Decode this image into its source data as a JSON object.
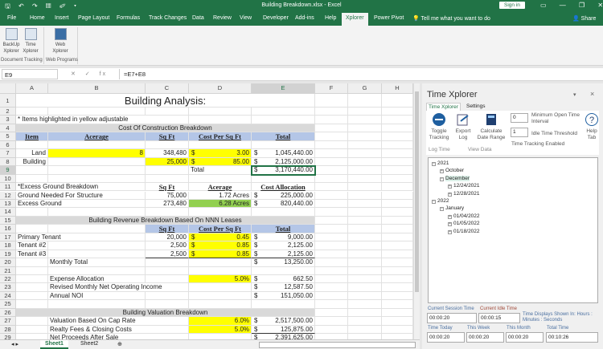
{
  "window": {
    "title": "Building Breakdown.xlsx - Excel",
    "sign_in": "Sign in",
    "qat": "🖫 ↶ ↷ ▦ ✐ ▾",
    "controls": "▭ — ❐ ✕"
  },
  "ribbon_tabs": [
    "File",
    "Home",
    "Insert",
    "Page Layout",
    "Formulas",
    "Track Changes",
    "Data",
    "Review",
    "View",
    "Developer",
    "Add-ins",
    "Help",
    "Xplorer",
    "Power Pivot"
  ],
  "active_tab": "Xplorer",
  "tell_me": "Tell me what you want to do",
  "share": "Share",
  "ribbon": {
    "buttons": [
      {
        "label": "BackUp Xplorer",
        "icon": "backup-icon"
      },
      {
        "label": "Time Xplorer",
        "icon": "hourglass-icon"
      },
      {
        "label": "Web Xplorer",
        "icon": "web-icon"
      }
    ],
    "groups": [
      "Document Tracking",
      "Web Programs"
    ]
  },
  "formula_bar": {
    "name_box": "E9",
    "formula": "=E7+E8",
    "icons": "✕ ✓ fx"
  },
  "sheet": {
    "columns": [
      "A",
      "B",
      "C",
      "D",
      "E",
      "F",
      "G",
      "H"
    ],
    "selected_column": "E",
    "selected_row": 9,
    "rows": [
      1,
      2,
      3,
      4,
      5,
      6,
      7,
      8,
      9,
      10,
      11,
      12,
      13,
      14,
      15,
      16,
      17,
      18,
      19,
      20,
      21,
      22,
      23,
      24,
      25,
      26,
      27,
      28,
      29
    ],
    "cells": [
      {
        "r": 1,
        "c": "A",
        "span": 5,
        "t": "Building Analysis:",
        "a": "center",
        "s": "title"
      },
      {
        "r": 3,
        "c": "A",
        "span": 3,
        "t": "* Items highlighted in yellow adjustable"
      },
      {
        "r": 4,
        "c": "A",
        "span": 5,
        "t": "Cost Of Construction Breakdown",
        "a": "center",
        "fill": "#d9d9d9"
      },
      {
        "r": 5,
        "c": "A",
        "t": "Item",
        "a": "center",
        "fill": "#b4c6e7",
        "s": "hdr"
      },
      {
        "r": 5,
        "c": "B",
        "t": "Acerage",
        "a": "center",
        "fill": "#b4c6e7",
        "s": "hdr"
      },
      {
        "r": 5,
        "c": "C",
        "t": "Sq Ft",
        "a": "center",
        "fill": "#b4c6e7",
        "s": "hdr"
      },
      {
        "r": 5,
        "c": "D",
        "t": "Cost Per Sq Ft",
        "a": "center",
        "fill": "#b4c6e7",
        "s": "hdr"
      },
      {
        "r": 5,
        "c": "E",
        "t": "Total",
        "a": "center",
        "fill": "#b4c6e7",
        "s": "hdr"
      },
      {
        "r": 7,
        "c": "A",
        "t": "Land",
        "a": "right"
      },
      {
        "r": 7,
        "c": "B",
        "t": "8",
        "a": "right",
        "fill": "#ffff00"
      },
      {
        "r": 7,
        "c": "C",
        "t": "348,480",
        "a": "right"
      },
      {
        "r": 7,
        "c": "D",
        "t": "3.00",
        "a": "right",
        "cur": true,
        "fill": "#ffff00"
      },
      {
        "r": 7,
        "c": "E",
        "t": "1,045,440.00",
        "a": "right",
        "cur": true
      },
      {
        "r": 8,
        "c": "A",
        "t": "Building",
        "a": "right"
      },
      {
        "r": 8,
        "c": "C",
        "t": "25,000",
        "a": "right",
        "fill": "#ffff00"
      },
      {
        "r": 8,
        "c": "D",
        "t": "85.00",
        "a": "right",
        "cur": true,
        "fill": "#ffff00"
      },
      {
        "r": 8,
        "c": "E",
        "t": "2,125,000.00",
        "a": "right",
        "cur": true,
        "s": "under"
      },
      {
        "r": 9,
        "c": "D",
        "t": "Total"
      },
      {
        "r": 9,
        "c": "E",
        "t": "3,170,440.00",
        "a": "right",
        "cur": true,
        "s": "selected"
      },
      {
        "r": 11,
        "c": "A",
        "span": 2,
        "t": "*Excess Ground Breakdown"
      },
      {
        "r": 11,
        "c": "C",
        "t": "Sq Ft",
        "a": "center",
        "s": "hdr"
      },
      {
        "r": 11,
        "c": "D",
        "t": "Acerage",
        "a": "center",
        "s": "hdr"
      },
      {
        "r": 11,
        "c": "E",
        "t": "Cost Allocation",
        "a": "center",
        "s": "hdr"
      },
      {
        "r": 12,
        "c": "A",
        "span": 2,
        "t": "Ground Needed For Structure"
      },
      {
        "r": 12,
        "c": "C",
        "t": "75,000",
        "a": "right"
      },
      {
        "r": 12,
        "c": "D",
        "t": "1.72 Acres",
        "a": "right"
      },
      {
        "r": 12,
        "c": "E",
        "t": "225,000.00",
        "a": "right",
        "cur": true
      },
      {
        "r": 13,
        "c": "A",
        "span": 2,
        "t": "Excess Ground"
      },
      {
        "r": 13,
        "c": "C",
        "t": "273,480",
        "a": "right"
      },
      {
        "r": 13,
        "c": "D",
        "t": "6.28 Acres",
        "a": "right",
        "fill": "#92d050"
      },
      {
        "r": 13,
        "c": "E",
        "t": "820,440.00",
        "a": "right",
        "cur": true
      },
      {
        "r": 15,
        "c": "A",
        "span": 5,
        "t": "Building Revenue Breakdown Based On NNN Leases",
        "a": "center",
        "fill": "#d9d9d9"
      },
      {
        "r": 16,
        "c": "C",
        "t": "Sq Ft",
        "a": "center",
        "fill": "#b4c6e7",
        "s": "hdr"
      },
      {
        "r": 16,
        "c": "D",
        "t": "Cost Per Sq Ft",
        "a": "center",
        "fill": "#b4c6e7",
        "s": "hdr"
      },
      {
        "r": 16,
        "c": "E",
        "t": "Total",
        "a": "center",
        "fill": "#b4c6e7",
        "s": "hdr"
      },
      {
        "r": 17,
        "c": "A",
        "span": 2,
        "t": "Primary Tenant"
      },
      {
        "r": 17,
        "c": "C",
        "t": "20,000",
        "a": "right"
      },
      {
        "r": 17,
        "c": "D",
        "t": "0.45",
        "a": "right",
        "cur": true,
        "fill": "#ffff00"
      },
      {
        "r": 17,
        "c": "E",
        "t": "9,000.00",
        "a": "right",
        "cur": true
      },
      {
        "r": 18,
        "c": "A",
        "t": "Tenant #2"
      },
      {
        "r": 18,
        "c": "C",
        "t": "2,500",
        "a": "right"
      },
      {
        "r": 18,
        "c": "D",
        "t": "0.85",
        "a": "right",
        "cur": true,
        "fill": "#ffff00"
      },
      {
        "r": 18,
        "c": "E",
        "t": "2,125.00",
        "a": "right",
        "cur": true
      },
      {
        "r": 19,
        "c": "A",
        "t": "Tenant #3"
      },
      {
        "r": 19,
        "c": "C",
        "t": "2,500",
        "a": "right",
        "s": "under"
      },
      {
        "r": 19,
        "c": "D",
        "t": "0.85",
        "a": "right",
        "cur": true,
        "fill": "#ffff00",
        "s": "under"
      },
      {
        "r": 19,
        "c": "E",
        "t": "2,125.00",
        "a": "right",
        "cur": true,
        "s": "under"
      },
      {
        "r": 20,
        "c": "B",
        "t": "Monthly Total"
      },
      {
        "r": 20,
        "c": "E",
        "t": "13,250.00",
        "a": "right",
        "cur": true
      },
      {
        "r": 22,
        "c": "B",
        "t": "Expense Allocation"
      },
      {
        "r": 22,
        "c": "D",
        "t": "5.0%",
        "a": "right",
        "fill": "#ffff00"
      },
      {
        "r": 22,
        "c": "E",
        "t": "662.50",
        "a": "right",
        "cur": true
      },
      {
        "r": 23,
        "c": "B",
        "span": 2,
        "t": "Revised Monthly Net Operating Income"
      },
      {
        "r": 23,
        "c": "E",
        "t": "12,587.50",
        "a": "right",
        "cur": true
      },
      {
        "r": 24,
        "c": "B",
        "t": "Annual NOI"
      },
      {
        "r": 24,
        "c": "E",
        "t": "151,050.00",
        "a": "right",
        "cur": true
      },
      {
        "r": 26,
        "c": "A",
        "span": 5,
        "t": "Building Valuation Breakdown",
        "a": "center",
        "fill": "#d9d9d9"
      },
      {
        "r": 27,
        "c": "B",
        "span": 2,
        "t": "Valuation Based On Cap Rate"
      },
      {
        "r": 27,
        "c": "D",
        "t": "6.0%",
        "a": "right",
        "fill": "#ffff00"
      },
      {
        "r": 27,
        "c": "E",
        "t": "2,517,500.00",
        "a": "right",
        "cur": true
      },
      {
        "r": 28,
        "c": "B",
        "span": 2,
        "t": "Realty Fees & Closing Costs"
      },
      {
        "r": 28,
        "c": "D",
        "t": "5.0%",
        "a": "right",
        "fill": "#ffff00"
      },
      {
        "r": 28,
        "c": "E",
        "t": "125,875.00",
        "a": "right",
        "cur": true,
        "s": "under"
      },
      {
        "r": 29,
        "c": "B",
        "span": 2,
        "t": "Net Proceeds After Sale"
      },
      {
        "r": 29,
        "c": "E",
        "t": "2,391,625.00",
        "a": "right",
        "cur": true
      }
    ],
    "currency": "$",
    "tabs": [
      "Sheet1",
      "Sheet2"
    ],
    "active_sheet": "Sheet1",
    "add_sheet": "⊕"
  },
  "panel": {
    "title": "Time Xplorer",
    "tabs": [
      "Time Xplorer",
      "Settings"
    ],
    "buttons": {
      "toggle": "Toggle Tracking",
      "export": "Export Log",
      "calc": "Calculate Date Range",
      "help": "Help Tab"
    },
    "groups": {
      "log": "Log Time",
      "view": "View Data"
    },
    "min_open": {
      "value": "0",
      "label": "Minimum Open Time Interval"
    },
    "idle": {
      "value": "1",
      "label": "Idle Time Threshold"
    },
    "status": "Time Tracking Enabled",
    "tree": [
      {
        "label": "2021",
        "level": 0,
        "exp": "−"
      },
      {
        "label": "October",
        "level": 1,
        "exp": "+"
      },
      {
        "label": "December",
        "level": 1,
        "exp": "−",
        "hl": true
      },
      {
        "label": "12/24/2021",
        "level": 2,
        "exp": "+"
      },
      {
        "label": "12/28/2021",
        "level": 2,
        "exp": "+"
      },
      {
        "label": "2022",
        "level": 0,
        "exp": "−"
      },
      {
        "label": "January",
        "level": 1,
        "exp": "−"
      },
      {
        "label": "01/04/2022",
        "level": 2,
        "exp": "+"
      },
      {
        "label": "01/05/2022",
        "level": 2,
        "exp": "+"
      },
      {
        "label": "01/18/2022",
        "level": 2,
        "exp": "+"
      }
    ],
    "times": {
      "session_label": "Current Session Time",
      "session": "00:00:20",
      "idle_label": "Current Idle Time",
      "idle": "00:00:15",
      "note": "Time Displays Shown In: Hours : Minutes : Seconds",
      "today_label": "Time Today",
      "today": "00:00:20",
      "week_label": "This Week",
      "week": "00:00:20",
      "month_label": "This Month",
      "month": "00:00:20",
      "total_label": "Total Time",
      "total": "00:10:26"
    }
  }
}
